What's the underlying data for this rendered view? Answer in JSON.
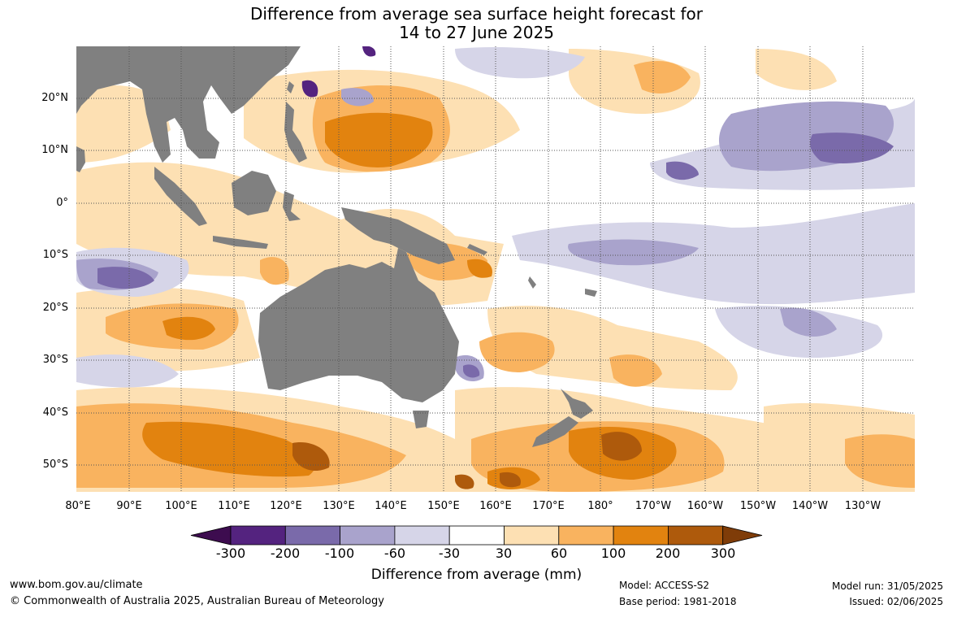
{
  "title_line1": "Difference from average sea surface height forecast for",
  "title_line2": "14 to 27 June 2025",
  "lat_labels": [
    "20°N",
    "10°N",
    "0°",
    "10°S",
    "20°S",
    "30°S",
    "40°S",
    "50°S"
  ],
  "lon_labels": [
    "80°E",
    "90°E",
    "100°E",
    "110°E",
    "120°E",
    "130°E",
    "140°E",
    "150°E",
    "160°E",
    "170°E",
    "180°",
    "170°W",
    "160°W",
    "150°W",
    "140°W",
    "130°W"
  ],
  "colorbar": {
    "label": "Difference from average (mm)",
    "ticks": [
      "-300",
      "-200",
      "-100",
      "-60",
      "-30",
      "30",
      "60",
      "100",
      "200",
      "300"
    ],
    "colors": [
      "#3d0c4f",
      "#54237f",
      "#7a6aaa",
      "#a9a3cc",
      "#d6d5e8",
      "#ffffff",
      "#fde0b3",
      "#f9b35f",
      "#e2830f",
      "#ae5a0c",
      "#7f3c08"
    ]
  },
  "colors": {
    "land": "#808080",
    "grid": "#555555"
  },
  "footer": {
    "website": "www.bom.gov.au/climate",
    "copyright": "© Commonwealth of Australia 2025, Australian Bureau of Meteorology",
    "model": "Model: ACCESS-S2",
    "base_period": "Base period: 1981-2018",
    "model_run": "Model run: 31/05/2025",
    "issued": "Issued: 02/06/2025"
  }
}
